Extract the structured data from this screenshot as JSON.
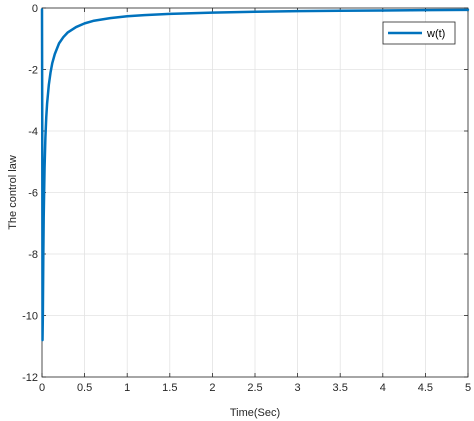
{
  "chart_data": {
    "type": "line",
    "title": "",
    "xlabel": "Time(Sec)",
    "ylabel": "The control law",
    "xlim": [
      0,
      5
    ],
    "ylim": [
      -12,
      0
    ],
    "xticks": [
      0,
      0.5,
      1,
      1.5,
      2,
      2.5,
      3,
      3.5,
      4,
      4.5,
      5
    ],
    "xtick_labels": [
      "0",
      "0.5",
      "1",
      "1.5",
      "2",
      "2.5",
      "3",
      "3.5",
      "4",
      "4.5",
      "5"
    ],
    "yticks": [
      0,
      -2,
      -4,
      -6,
      -8,
      -10,
      -12
    ],
    "ytick_labels": [
      "0",
      "-2",
      "-4",
      "-6",
      "-8",
      "-10",
      "-12"
    ],
    "grid": true,
    "legend_position": "top-right",
    "line_color": "#0072BD",
    "series": [
      {
        "name": "w(t)",
        "x": [
          0,
          0.003,
          0.006,
          0.01,
          0.015,
          0.02,
          0.03,
          0.04,
          0.05,
          0.06,
          0.08,
          0.1,
          0.12,
          0.15,
          0.2,
          0.25,
          0.3,
          0.4,
          0.5,
          0.6,
          0.8,
          1.0,
          1.2,
          1.5,
          2.0,
          2.5,
          3.0,
          3.5,
          4.0,
          4.5,
          5.0
        ],
        "y": [
          -0.05,
          -4.0,
          -10.8,
          -10.0,
          -8.2,
          -6.8,
          -5.2,
          -4.2,
          -3.55,
          -3.1,
          -2.5,
          -2.1,
          -1.8,
          -1.5,
          -1.15,
          -0.95,
          -0.8,
          -0.62,
          -0.5,
          -0.42,
          -0.33,
          -0.27,
          -0.23,
          -0.19,
          -0.15,
          -0.12,
          -0.1,
          -0.09,
          -0.08,
          -0.07,
          -0.06
        ]
      }
    ]
  }
}
